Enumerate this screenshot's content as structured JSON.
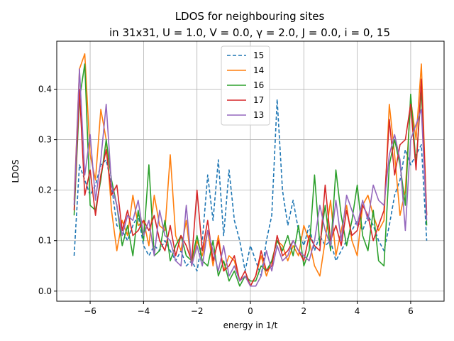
{
  "chart_data": {
    "type": "line",
    "title_line1": "LDOS for neighbouring sites",
    "title_line2": "in 31x31,  U = 1.0, V = 0.0, γ = 2.0, J = 0.0, i = 0, 15",
    "xlabel": "energy in 1/t",
    "ylabel": "LDOS",
    "xlim": [
      -7.25,
      7.25
    ],
    "ylim": [
      -0.02,
      0.495
    ],
    "xticks": [
      -6,
      -4,
      -2,
      0,
      2,
      4,
      6
    ],
    "xtick_labels": [
      "−6",
      "−4",
      "−2",
      "0",
      "2",
      "4",
      "6"
    ],
    "yticks": [
      0.0,
      0.1,
      0.2,
      0.3,
      0.4
    ],
    "ytick_labels": [
      "0.0",
      "0.1",
      "0.2",
      "0.3",
      "0.4"
    ],
    "grid": true,
    "legend_position": "top-center",
    "x": [
      -6.6,
      -6.4,
      -6.2,
      -6.0,
      -5.8,
      -5.6,
      -5.4,
      -5.2,
      -5.0,
      -4.8,
      -4.6,
      -4.4,
      -4.2,
      -4.0,
      -3.8,
      -3.6,
      -3.4,
      -3.2,
      -3.0,
      -2.8,
      -2.6,
      -2.4,
      -2.2,
      -2.0,
      -1.8,
      -1.6,
      -1.4,
      -1.2,
      -1.0,
      -0.8,
      -0.6,
      -0.4,
      -0.2,
      0.0,
      0.2,
      0.4,
      0.6,
      0.8,
      1.0,
      1.2,
      1.4,
      1.6,
      1.8,
      2.0,
      2.2,
      2.4,
      2.6,
      2.8,
      3.0,
      3.2,
      3.4,
      3.6,
      3.8,
      4.0,
      4.2,
      4.4,
      4.6,
      4.8,
      5.0,
      5.2,
      5.4,
      5.6,
      5.8,
      6.0,
      6.2,
      6.4,
      6.6
    ],
    "series": [
      {
        "name": "15",
        "color": "#1f77b4",
        "dashed": true,
        "values": [
          0.07,
          0.25,
          0.22,
          0.19,
          0.21,
          0.25,
          0.26,
          0.21,
          0.13,
          0.12,
          0.1,
          0.13,
          0.15,
          0.09,
          0.07,
          0.09,
          0.08,
          0.1,
          0.08,
          0.06,
          0.08,
          0.05,
          0.06,
          0.04,
          0.1,
          0.23,
          0.14,
          0.26,
          0.11,
          0.24,
          0.14,
          0.1,
          0.04,
          0.09,
          0.06,
          0.03,
          0.1,
          0.15,
          0.38,
          0.2,
          0.13,
          0.18,
          0.12,
          0.09,
          0.13,
          0.08,
          0.11,
          0.09,
          0.1,
          0.06,
          0.08,
          0.1,
          0.12,
          0.14,
          0.12,
          0.15,
          0.13,
          0.1,
          0.08,
          0.13,
          0.19,
          0.22,
          0.28,
          0.25,
          0.27,
          0.29,
          0.1
        ]
      },
      {
        "name": "14",
        "color": "#ff7f0e",
        "dashed": false,
        "values": [
          0.18,
          0.44,
          0.47,
          0.27,
          0.22,
          0.36,
          0.3,
          0.16,
          0.08,
          0.14,
          0.11,
          0.19,
          0.13,
          0.14,
          0.09,
          0.19,
          0.13,
          0.12,
          0.27,
          0.11,
          0.08,
          0.14,
          0.05,
          0.1,
          0.07,
          0.12,
          0.05,
          0.11,
          0.04,
          0.07,
          0.06,
          0.02,
          0.03,
          0.01,
          0.03,
          0.07,
          0.03,
          0.06,
          0.1,
          0.09,
          0.06,
          0.09,
          0.07,
          0.13,
          0.1,
          0.05,
          0.03,
          0.1,
          0.18,
          0.07,
          0.12,
          0.17,
          0.1,
          0.07,
          0.17,
          0.19,
          0.15,
          0.12,
          0.14,
          0.37,
          0.27,
          0.15,
          0.2,
          0.38,
          0.3,
          0.45,
          0.15
        ]
      },
      {
        "name": "16",
        "color": "#2ca02c",
        "dashed": false,
        "values": [
          0.15,
          0.38,
          0.45,
          0.17,
          0.16,
          0.22,
          0.3,
          0.22,
          0.17,
          0.09,
          0.13,
          0.07,
          0.16,
          0.1,
          0.25,
          0.07,
          0.08,
          0.14,
          0.06,
          0.09,
          0.11,
          0.07,
          0.06,
          0.11,
          0.06,
          0.05,
          0.1,
          0.03,
          0.06,
          0.02,
          0.04,
          0.01,
          0.03,
          0.02,
          0.02,
          0.05,
          0.04,
          0.06,
          0.1,
          0.08,
          0.11,
          0.07,
          0.13,
          0.05,
          0.08,
          0.23,
          0.09,
          0.17,
          0.08,
          0.24,
          0.15,
          0.09,
          0.14,
          0.21,
          0.11,
          0.08,
          0.16,
          0.06,
          0.05,
          0.25,
          0.3,
          0.25,
          0.17,
          0.39,
          0.25,
          0.4,
          0.13
        ]
      },
      {
        "name": "17",
        "color": "#d62728",
        "dashed": false,
        "values": [
          0.16,
          0.4,
          0.19,
          0.24,
          0.15,
          0.23,
          0.28,
          0.19,
          0.21,
          0.12,
          0.16,
          0.11,
          0.12,
          0.14,
          0.12,
          0.15,
          0.1,
          0.08,
          0.13,
          0.07,
          0.11,
          0.09,
          0.06,
          0.2,
          0.08,
          0.14,
          0.06,
          0.1,
          0.04,
          0.05,
          0.07,
          0.02,
          0.04,
          0.01,
          0.03,
          0.08,
          0.04,
          0.05,
          0.11,
          0.07,
          0.08,
          0.1,
          0.08,
          0.06,
          0.11,
          0.09,
          0.08,
          0.21,
          0.1,
          0.13,
          0.09,
          0.16,
          0.11,
          0.12,
          0.17,
          0.15,
          0.1,
          0.13,
          0.16,
          0.34,
          0.23,
          0.29,
          0.3,
          0.37,
          0.24,
          0.42,
          0.15
        ]
      },
      {
        "name": "13",
        "color": "#9467bd",
        "dashed": false,
        "values": [
          0.17,
          0.44,
          0.23,
          0.31,
          0.18,
          0.26,
          0.37,
          0.21,
          0.17,
          0.11,
          0.15,
          0.14,
          0.18,
          0.11,
          0.14,
          0.07,
          0.16,
          0.11,
          0.1,
          0.06,
          0.05,
          0.17,
          0.05,
          0.09,
          0.05,
          0.12,
          0.08,
          0.04,
          0.09,
          0.03,
          0.05,
          0.02,
          0.03,
          0.01,
          0.01,
          0.03,
          0.08,
          0.04,
          0.09,
          0.06,
          0.07,
          0.1,
          0.08,
          0.07,
          0.06,
          0.1,
          0.17,
          0.12,
          0.09,
          0.18,
          0.1,
          0.19,
          0.16,
          0.13,
          0.18,
          0.14,
          0.21,
          0.18,
          0.17,
          0.27,
          0.31,
          0.26,
          0.12,
          0.3,
          0.33,
          0.36,
          0.14
        ]
      }
    ]
  }
}
